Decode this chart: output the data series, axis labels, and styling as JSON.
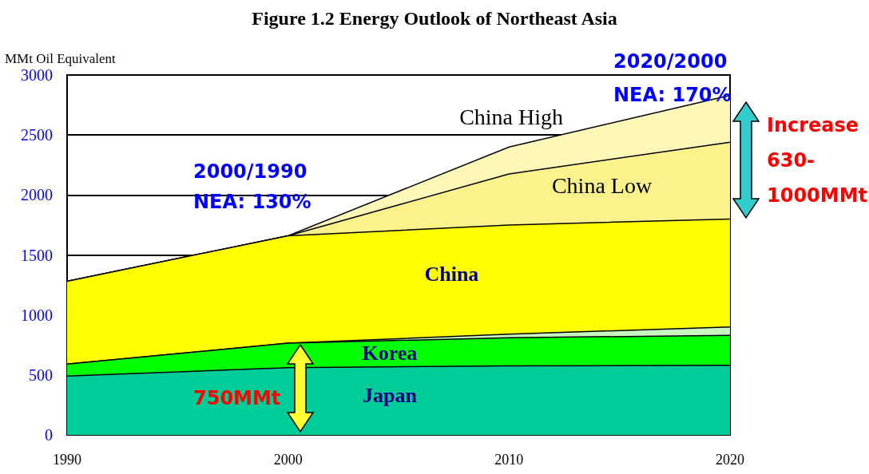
{
  "chart_data": {
    "type": "area",
    "title": "Figure 1.2 Energy Outlook of Northeast Asia",
    "ylabel": "MMt Oil Equivalent",
    "x": [
      1990,
      2000,
      2010,
      2020
    ],
    "stacked": true,
    "series": [
      {
        "name": "Japan",
        "color": "#00cc99",
        "values": [
          490,
          560,
          575,
          580
        ]
      },
      {
        "name": "Korea",
        "color": "#00ff00",
        "values": [
          100,
          205,
          235,
          250
        ]
      },
      {
        "color": "#c8f5c0",
        "values": [
          0,
          0,
          30,
          70
        ]
      },
      {
        "name": "China",
        "color": "#ffff00",
        "values": [
          690,
          895,
          910,
          900
        ]
      },
      {
        "name": "China Low",
        "color": "#fbf28c",
        "values": [
          0,
          0,
          425,
          640
        ]
      },
      {
        "name": "China High",
        "color": "#fdf8b8",
        "values": [
          0,
          0,
          225,
          390
        ]
      }
    ],
    "xlim": [
      1990,
      2020
    ],
    "xticks": [
      1990,
      2000,
      2010,
      2020
    ],
    "ylim": [
      0,
      3000
    ],
    "yticks": [
      0,
      500,
      1000,
      1500,
      2000,
      2500,
      3000
    ],
    "grid": "y",
    "legend": false,
    "annotations": [
      "2000/1990\nNEA: 130%",
      "2020/2000\nNEA: 170%",
      "750MMt",
      "Increase\n630-\n1000MMt"
    ]
  }
}
